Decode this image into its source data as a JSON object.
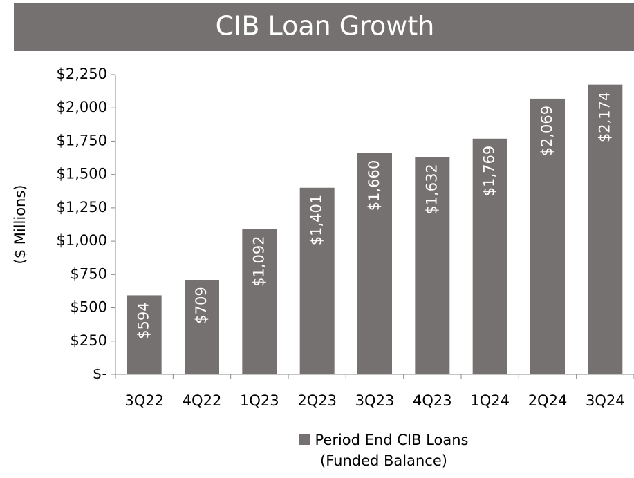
{
  "chart_data": {
    "type": "bar",
    "title": "CIB Loan Growth",
    "y_label": "($ Millions)",
    "categories": [
      "3Q22",
      "4Q22",
      "1Q23",
      "2Q23",
      "3Q23",
      "4Q23",
      "1Q24",
      "2Q24",
      "3Q24"
    ],
    "series": [
      {
        "name": "Period End CIB Loans (Funded Balance)",
        "color": "#767171",
        "values": [
          594,
          709,
          1092,
          1401,
          1660,
          1632,
          1769,
          2069,
          2174
        ],
        "value_labels": [
          "$594",
          "$709",
          "$1,092",
          "$1,401",
          "$1,660",
          "$1,632",
          "$1,769",
          "$2,069",
          "$2,174"
        ]
      }
    ],
    "ylim": [
      0,
      2250
    ],
    "yticks": [
      {
        "value": 0,
        "label": "$-"
      },
      {
        "value": 250,
        "label": "$250"
      },
      {
        "value": 500,
        "label": "$500"
      },
      {
        "value": 750,
        "label": "$750"
      },
      {
        "value": 1000,
        "label": "$1,000"
      },
      {
        "value": 1250,
        "label": "$1,250"
      },
      {
        "value": 1500,
        "label": "$1,500"
      },
      {
        "value": 1750,
        "label": "$1,750"
      },
      {
        "value": 2000,
        "label": "$2,000"
      },
      {
        "value": 2250,
        "label": "$2,250"
      }
    ],
    "grid": false
  }
}
